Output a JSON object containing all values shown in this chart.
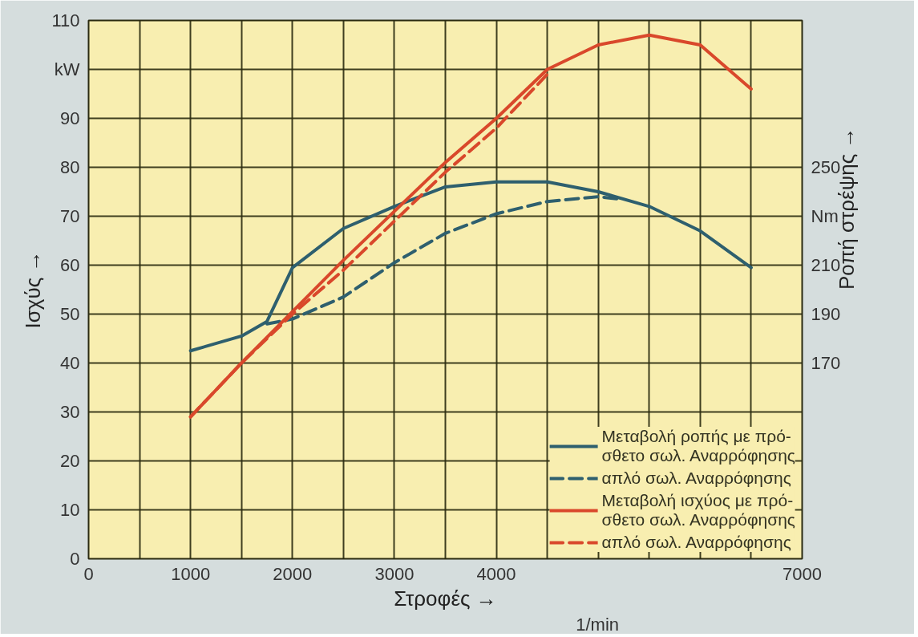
{
  "chart_data": {
    "type": "line",
    "xlabel": "Στροφές →",
    "ylabel": "Ισχύς →",
    "y2label": "Ροπή στρέψης →",
    "xlim": [
      0,
      7000
    ],
    "ylim": [
      0,
      110
    ],
    "y2lim": [
      90,
      310
    ],
    "xticks": [
      0,
      {
        "value": 500,
        "label": null
      },
      1000,
      {
        "value": 1500,
        "label": null
      },
      2000,
      {
        "value": 2500,
        "label": null
      },
      3000,
      {
        "value": 3500,
        "label": null
      },
      4000,
      {
        "value": 4500,
        "label": null
      },
      {
        "value": 5000,
        "label": null
      },
      {
        "value": 5500,
        "label": null
      },
      {
        "value": 6000,
        "label": null
      },
      {
        "value": 6500,
        "label": null
      },
      7000
    ],
    "yticks": [
      0,
      10,
      20,
      30,
      40,
      50,
      60,
      70,
      80,
      90,
      {
        "value": 100,
        "label": "kW"
      },
      110
    ],
    "y2ticks": [
      170,
      190,
      210,
      {
        "value": 230,
        "label": "Nm"
      },
      250
    ],
    "grid": true,
    "legend": "bottom right",
    "annotations": [
      "1/min"
    ],
    "series": [
      {
        "name": "Μεταβολή ροπής με πρό-\nσθετο σωλ. Αναρρόφησης",
        "color": "#2e5f6e",
        "axis": "y2",
        "line_style": "solid",
        "x": [
          1000,
          1500,
          1750,
          2000,
          2500,
          3000,
          3500,
          4000,
          4500,
          5000,
          5500,
          6000,
          6500
        ],
        "values": [
          175,
          181,
          187,
          209,
          225,
          234,
          242,
          244,
          244,
          240,
          234,
          224,
          209
        ]
      },
      {
        "name": "απλό σωλ. Αναρρόφησης",
        "color": "#2e5f6e",
        "axis": "y2",
        "line_style": "dashed",
        "x": [
          1750,
          2000,
          2500,
          3000,
          3500,
          4000,
          4500,
          5000,
          5200
        ],
        "values": [
          186,
          188,
          197,
          211,
          223,
          231,
          236,
          238,
          237
        ]
      },
      {
        "name": "Μεταβολή ισχύος με πρό-\nσθετο σωλ. Αναρρόφησης",
        "color": "#d9482b",
        "axis": "y",
        "line_style": "solid",
        "x": [
          1000,
          1500,
          2000,
          2500,
          3000,
          3500,
          4000,
          4500,
          5000,
          5500,
          6000,
          6500
        ],
        "values": [
          29,
          40,
          50.5,
          61,
          71,
          81,
          90,
          100,
          105,
          107,
          105,
          96
        ]
      },
      {
        "name": "απλό σωλ. Αναρρόφησης",
        "color": "#d9482b",
        "axis": "y",
        "line_style": "dashed",
        "x": [
          1000,
          1500,
          2000,
          2500,
          3000,
          3500,
          4000,
          4500
        ],
        "values": [
          29,
          40,
          50,
          59,
          69,
          79,
          88,
          99
        ]
      }
    ]
  }
}
